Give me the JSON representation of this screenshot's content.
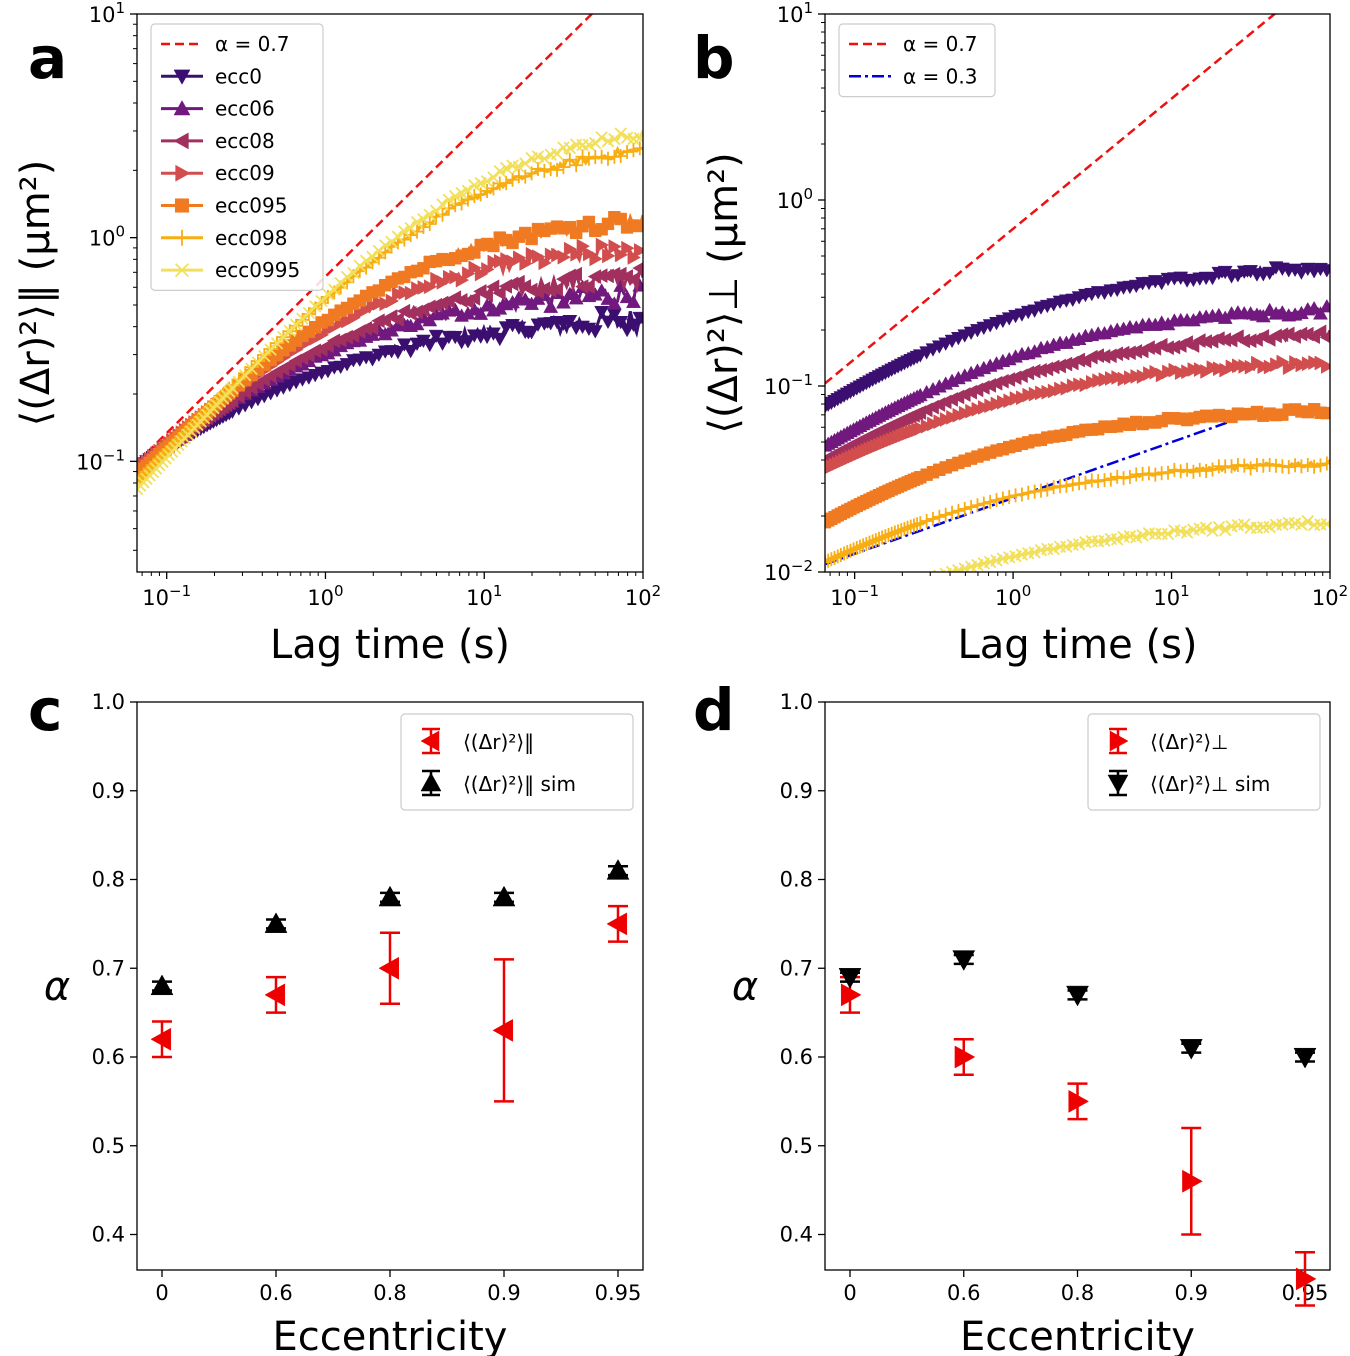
{
  "colors": {
    "ecc0": "#3b0f70",
    "ecc06": "#71197e",
    "ecc08": "#a2305f",
    "ecc09": "#d24d4d",
    "ecc095": "#f07a22",
    "ecc098": "#f8ae12",
    "ecc0995": "#f2e05a",
    "ref07": "#ee1111",
    "ref03": "#0000dd",
    "exp": "#ee0000",
    "sim": "#000000"
  },
  "chart_data": [
    {
      "panel": "a",
      "type": "line",
      "xscale": "log",
      "yscale": "log",
      "xlim": [
        0.065,
        100
      ],
      "ylim": [
        0.032,
        10
      ],
      "xlabel": "Lag time (s)",
      "ylabel": "⟨(Δr)²⟩‖ (μm²)",
      "xticks": [
        {
          "v": 0.1,
          "b": "10",
          "e": "−1"
        },
        {
          "v": 1,
          "b": "10",
          "e": "0"
        },
        {
          "v": 10,
          "b": "10",
          "e": "1"
        },
        {
          "v": 100,
          "b": "10",
          "e": "2"
        }
      ],
      "yticks": [
        {
          "v": 0.1,
          "b": "10",
          "e": "−1"
        },
        {
          "v": 1,
          "b": "10",
          "e": "0"
        },
        {
          "v": 10,
          "b": "10",
          "e": "1"
        }
      ],
      "legend_position": "top-left",
      "ref_lines": [
        {
          "label": "α = 0.7",
          "slope": 0.7,
          "y_at_1": 0.67,
          "color_key": "ref07",
          "style": "dashed"
        }
      ],
      "series": [
        {
          "name": "ecc0",
          "marker": "v",
          "color_key": "ecc0",
          "early": 0.26,
          "slope": 0.58,
          "plateau": 0.45,
          "noise": 0.13,
          "x0": 0.065,
          "x1": 100
        },
        {
          "name": "ecc06",
          "marker": "^",
          "color_key": "ecc06",
          "early": 0.26,
          "slope": 0.62,
          "plateau": 0.6,
          "noise": 0.12,
          "x0": 0.065,
          "x1": 100
        },
        {
          "name": "ecc08",
          "marker": "<",
          "color_key": "ecc08",
          "early": 0.25,
          "slope": 0.65,
          "plateau": 0.7,
          "noise": 0.11,
          "x0": 0.065,
          "x1": 100
        },
        {
          "name": "ecc09",
          "marker": ">",
          "color_key": "ecc09",
          "early": 0.25,
          "slope": 0.67,
          "plateau": 0.95,
          "noise": 0.1,
          "x0": 0.065,
          "x1": 100
        },
        {
          "name": "ecc095",
          "marker": "s",
          "color_key": "ecc095",
          "early": 0.24,
          "slope": 0.7,
          "plateau": 1.3,
          "noise": 0.08,
          "x0": 0.065,
          "x1": 100
        },
        {
          "name": "ecc098",
          "marker": "+",
          "color_key": "ecc098",
          "early": 0.23,
          "slope": 0.75,
          "plateau": 2.8,
          "noise": 0.05,
          "x0": 0.065,
          "x1": 100
        },
        {
          "name": "ecc0995",
          "marker": "x",
          "color_key": "ecc0995",
          "early": 0.22,
          "slope": 0.78,
          "plateau": 3.3,
          "noise": 0.05,
          "x0": 0.065,
          "x1": 100
        }
      ]
    },
    {
      "panel": "b",
      "type": "line",
      "xscale": "log",
      "yscale": "log",
      "xlim": [
        0.065,
        100
      ],
      "ylim": [
        0.01,
        10
      ],
      "xlabel": "Lag time (s)",
      "ylabel": "⟨(Δr)²⟩⊥ (μm²)",
      "xticks": [
        {
          "v": 0.1,
          "b": "10",
          "e": "−1"
        },
        {
          "v": 1,
          "b": "10",
          "e": "0"
        },
        {
          "v": 10,
          "b": "10",
          "e": "1"
        },
        {
          "v": 100,
          "b": "10",
          "e": "2"
        }
      ],
      "yticks": [
        {
          "v": 0.01,
          "b": "10",
          "e": "−2"
        },
        {
          "v": 0.1,
          "b": "10",
          "e": "−1"
        },
        {
          "v": 1,
          "b": "10",
          "e": "0"
        },
        {
          "v": 10,
          "b": "10",
          "e": "1"
        }
      ],
      "legend_position": "top-left",
      "ref_lines": [
        {
          "label": "α = 0.7",
          "slope": 0.7,
          "y_at_1": 0.7,
          "color_key": "ref07",
          "style": "dashed"
        },
        {
          "label": "α = 0.3",
          "slope": 0.3,
          "y_at_1": 0.025,
          "color_key": "ref03",
          "style": "dashdot",
          "x_end": 30
        }
      ],
      "series": [
        {
          "name": "ecc0",
          "marker": "v",
          "color_key": "ecc0",
          "early": 0.21,
          "slope": 0.6,
          "plateau": 0.46,
          "noise": 0.05,
          "x0": 0.065,
          "x1": 100
        },
        {
          "name": "ecc06",
          "marker": "^",
          "color_key": "ecc06",
          "early": 0.13,
          "slope": 0.6,
          "plateau": 0.27,
          "noise": 0.05,
          "x0": 0.065,
          "x1": 100
        },
        {
          "name": "ecc08",
          "marker": "<",
          "color_key": "ecc08",
          "early": 0.11,
          "slope": 0.58,
          "plateau": 0.2,
          "noise": 0.05,
          "x0": 0.065,
          "x1": 100
        },
        {
          "name": "ecc09",
          "marker": ">",
          "color_key": "ecc09",
          "early": 0.1,
          "slope": 0.55,
          "plateau": 0.14,
          "noise": 0.05,
          "x0": 0.065,
          "x1": 100
        },
        {
          "name": "ecc095",
          "marker": "s",
          "color_key": "ecc095",
          "early": 0.055,
          "slope": 0.6,
          "plateau": 0.076,
          "noise": 0.04,
          "x0": 0.065,
          "x1": 100
        },
        {
          "name": "ecc098",
          "marker": "+",
          "color_key": "ecc098",
          "early": 0.033,
          "slope": 0.55,
          "plateau": 0.04,
          "noise": 0.04,
          "x0": 0.065,
          "x1": 100
        },
        {
          "name": "ecc0995",
          "marker": "x",
          "color_key": "ecc0995",
          "early": 0.016,
          "slope": 0.5,
          "plateau": 0.0195,
          "noise": 0.04,
          "x0": 0.065,
          "x1": 100
        }
      ]
    },
    {
      "panel": "c",
      "type": "scatter",
      "xlabel": "Eccentricity",
      "ylabel": "α",
      "categories": [
        "0",
        "0.6",
        "0.8",
        "0.9",
        "0.95"
      ],
      "ylim": [
        0.36,
        1.0
      ],
      "yticks": [
        0.4,
        0.5,
        0.6,
        0.7,
        0.8,
        0.9,
        1.0
      ],
      "legend_position": "top-right",
      "series": [
        {
          "name": "⟨(Δr)²⟩‖",
          "marker": "<",
          "color_key": "exp",
          "values": [
            0.62,
            0.67,
            0.7,
            0.63,
            0.75
          ],
          "err_low": [
            0.02,
            0.02,
            0.04,
            0.08,
            0.02
          ],
          "err_high": [
            0.02,
            0.02,
            0.04,
            0.08,
            0.02
          ]
        },
        {
          "name": "⟨(Δr)²⟩‖ sim",
          "marker": "^",
          "color_key": "sim",
          "values": [
            0.68,
            0.75,
            0.78,
            0.78,
            0.81
          ],
          "err_low": [
            0.005,
            0.005,
            0.005,
            0.005,
            0.005
          ],
          "err_high": [
            0.005,
            0.005,
            0.005,
            0.005,
            0.005
          ]
        }
      ]
    },
    {
      "panel": "d",
      "type": "scatter",
      "xlabel": "Eccentricity",
      "ylabel": "α",
      "categories": [
        "0",
        "0.6",
        "0.8",
        "0.9",
        "0.95"
      ],
      "ylim": [
        0.36,
        1.0
      ],
      "yticks": [
        0.4,
        0.5,
        0.6,
        0.7,
        0.8,
        0.9,
        1.0
      ],
      "legend_position": "top-right",
      "series": [
        {
          "name": "⟨(Δr)²⟩⊥",
          "marker": ">",
          "color_key": "exp",
          "values": [
            0.67,
            0.6,
            0.55,
            0.46,
            0.35
          ],
          "err_low": [
            0.02,
            0.02,
            0.02,
            0.06,
            0.03
          ],
          "err_high": [
            0.02,
            0.02,
            0.02,
            0.06,
            0.03
          ]
        },
        {
          "name": "⟨(Δr)²⟩⊥ sim",
          "marker": "v",
          "color_key": "sim",
          "values": [
            0.69,
            0.71,
            0.67,
            0.61,
            0.6
          ],
          "err_low": [
            0.005,
            0.005,
            0.005,
            0.005,
            0.005
          ],
          "err_high": [
            0.005,
            0.005,
            0.005,
            0.005,
            0.005
          ]
        }
      ]
    }
  ]
}
